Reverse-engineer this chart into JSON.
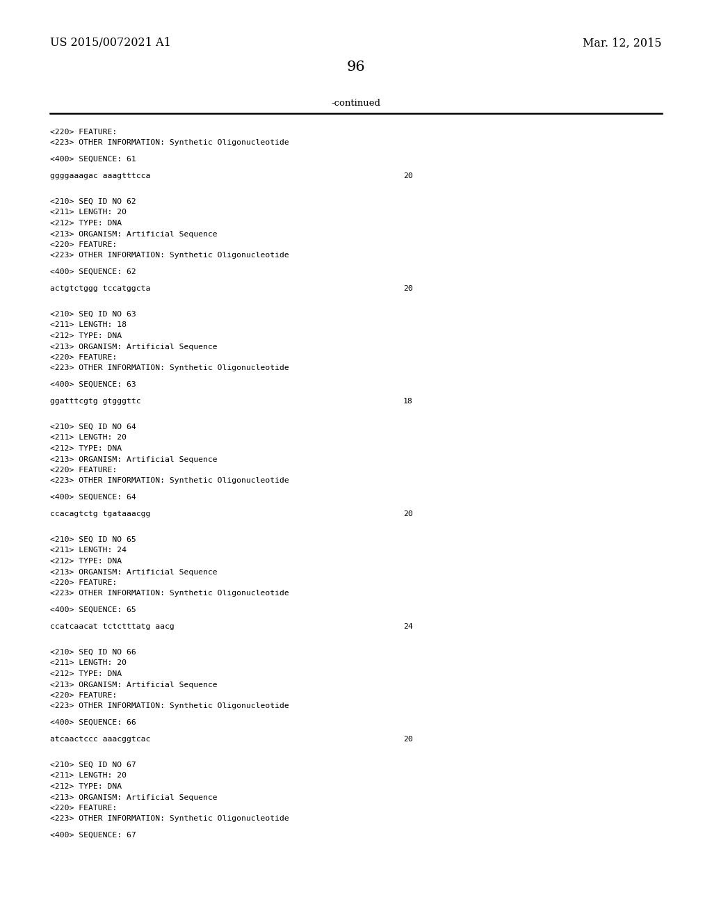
{
  "background_color": "#ffffff",
  "header_left": "US 2015/0072021 A1",
  "header_right": "Mar. 12, 2015",
  "page_number": "96",
  "continued_label": "-continued",
  "content_blocks": [
    {
      "type": "meta",
      "lines": [
        "<220> FEATURE:",
        "<223> OTHER INFORMATION: Synthetic Oligonucleotide"
      ]
    },
    {
      "type": "spacer"
    },
    {
      "type": "meta",
      "lines": [
        "<400> SEQUENCE: 61"
      ]
    },
    {
      "type": "spacer"
    },
    {
      "type": "seq",
      "sequence": "ggggaaagac aaagtttcca",
      "length": "20"
    },
    {
      "type": "spacer2"
    },
    {
      "type": "meta",
      "lines": [
        "<210> SEQ ID NO 62",
        "<211> LENGTH: 20",
        "<212> TYPE: DNA",
        "<213> ORGANISM: Artificial Sequence",
        "<220> FEATURE:",
        "<223> OTHER INFORMATION: Synthetic Oligonucleotide"
      ]
    },
    {
      "type": "spacer"
    },
    {
      "type": "meta",
      "lines": [
        "<400> SEQUENCE: 62"
      ]
    },
    {
      "type": "spacer"
    },
    {
      "type": "seq",
      "sequence": "actgtctggg tccatggcta",
      "length": "20"
    },
    {
      "type": "spacer2"
    },
    {
      "type": "meta",
      "lines": [
        "<210> SEQ ID NO 63",
        "<211> LENGTH: 18",
        "<212> TYPE: DNA",
        "<213> ORGANISM: Artificial Sequence",
        "<220> FEATURE:",
        "<223> OTHER INFORMATION: Synthetic Oligonucleotide"
      ]
    },
    {
      "type": "spacer"
    },
    {
      "type": "meta",
      "lines": [
        "<400> SEQUENCE: 63"
      ]
    },
    {
      "type": "spacer"
    },
    {
      "type": "seq",
      "sequence": "ggatttcgtg gtgggttc",
      "length": "18"
    },
    {
      "type": "spacer2"
    },
    {
      "type": "meta",
      "lines": [
        "<210> SEQ ID NO 64",
        "<211> LENGTH: 20",
        "<212> TYPE: DNA",
        "<213> ORGANISM: Artificial Sequence",
        "<220> FEATURE:",
        "<223> OTHER INFORMATION: Synthetic Oligonucleotide"
      ]
    },
    {
      "type": "spacer"
    },
    {
      "type": "meta",
      "lines": [
        "<400> SEQUENCE: 64"
      ]
    },
    {
      "type": "spacer"
    },
    {
      "type": "seq",
      "sequence": "ccacagtctg tgataaacgg",
      "length": "20"
    },
    {
      "type": "spacer2"
    },
    {
      "type": "meta",
      "lines": [
        "<210> SEQ ID NO 65",
        "<211> LENGTH: 24",
        "<212> TYPE: DNA",
        "<213> ORGANISM: Artificial Sequence",
        "<220> FEATURE:",
        "<223> OTHER INFORMATION: Synthetic Oligonucleotide"
      ]
    },
    {
      "type": "spacer"
    },
    {
      "type": "meta",
      "lines": [
        "<400> SEQUENCE: 65"
      ]
    },
    {
      "type": "spacer"
    },
    {
      "type": "seq",
      "sequence": "ccatcaacat tctctttatg aacg",
      "length": "24"
    },
    {
      "type": "spacer2"
    },
    {
      "type": "meta",
      "lines": [
        "<210> SEQ ID NO 66",
        "<211> LENGTH: 20",
        "<212> TYPE: DNA",
        "<213> ORGANISM: Artificial Sequence",
        "<220> FEATURE:",
        "<223> OTHER INFORMATION: Synthetic Oligonucleotide"
      ]
    },
    {
      "type": "spacer"
    },
    {
      "type": "meta",
      "lines": [
        "<400> SEQUENCE: 66"
      ]
    },
    {
      "type": "spacer"
    },
    {
      "type": "seq",
      "sequence": "atcaactccc aaacggtcac",
      "length": "20"
    },
    {
      "type": "spacer2"
    },
    {
      "type": "meta",
      "lines": [
        "<210> SEQ ID NO 67",
        "<211> LENGTH: 20",
        "<212> TYPE: DNA",
        "<213> ORGANISM: Artificial Sequence",
        "<220> FEATURE:",
        "<223> OTHER INFORMATION: Synthetic Oligonucleotide"
      ]
    },
    {
      "type": "spacer"
    },
    {
      "type": "meta",
      "lines": [
        "<400> SEQUENCE: 67"
      ]
    }
  ]
}
